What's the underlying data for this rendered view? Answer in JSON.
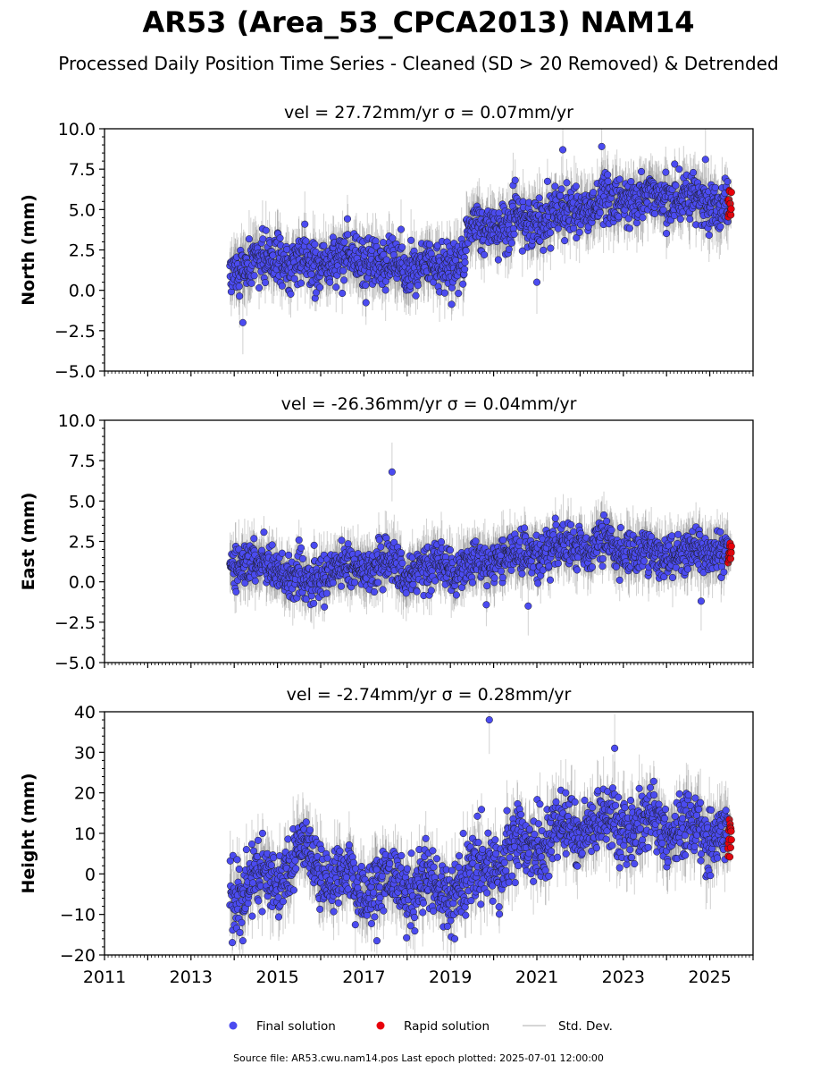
{
  "figure": {
    "title": "AR53 (Area_53_CPCA2013) NAM14",
    "subtitle": "Processed Daily Position Time Series - Cleaned (SD > 20 Removed) & Detrended",
    "footer": "Source file: AR53.cwu.nam14.pos  Last epoch plotted: 2025-07-01 12:00:00",
    "legend": {
      "final": "Final solution",
      "rapid": "Rapid solution",
      "std": "Std. Dev.",
      "position": "bottom-center"
    },
    "colors": {
      "final": "#4b4bf0",
      "rapid": "#e8000b",
      "std": "#b0b0b0",
      "marker_edge": "#1a1a1a"
    }
  },
  "chart_data": [
    {
      "type": "scatter",
      "title": "vel = 27.72mm/yr   σ = 0.07mm/yr",
      "ylabel": "North (mm)",
      "xlim": [
        2011.0,
        2026.0
      ],
      "ylim": [
        -5,
        10
      ],
      "yticks": [
        "−5.0",
        "−2.5",
        "0.0",
        "2.5",
        "5.0",
        "7.5",
        "10.0"
      ],
      "xticks": [
        "2011",
        "2013",
        "2015",
        "2017",
        "2019",
        "2021",
        "2023",
        "2025"
      ],
      "x_start": 2013.9,
      "x_end": 2025.5,
      "rapid_start": 2025.42,
      "segments": [
        {
          "x": 2013.9,
          "y": 1.3
        },
        {
          "x": 2015.0,
          "y": 2.0
        },
        {
          "x": 2016.0,
          "y": 1.8
        },
        {
          "x": 2017.0,
          "y": 1.9
        },
        {
          "x": 2018.0,
          "y": 1.3
        },
        {
          "x": 2019.3,
          "y": 1.8
        },
        {
          "x": 2019.4,
          "y": 3.6
        },
        {
          "x": 2020.5,
          "y": 4.2
        },
        {
          "x": 2021.5,
          "y": 4.6
        },
        {
          "x": 2022.5,
          "y": 5.5
        },
        {
          "x": 2023.5,
          "y": 6.0
        },
        {
          "x": 2024.5,
          "y": 5.8
        },
        {
          "x": 2025.5,
          "y": 5.3
        }
      ],
      "scatter_sd": 0.75,
      "errbar": 1.4,
      "outliers": [
        {
          "x": 2014.2,
          "y": -2.0
        },
        {
          "x": 2021.6,
          "y": 8.7
        },
        {
          "x": 2022.5,
          "y": 8.9
        },
        {
          "x": 2024.9,
          "y": 8.1
        },
        {
          "x": 2021.0,
          "y": 0.5
        }
      ],
      "rapid_range": [
        4.4,
        6.2
      ]
    },
    {
      "type": "scatter",
      "title": "vel = -26.36mm/yr   σ = 0.04mm/yr",
      "ylabel": "East (mm)",
      "xlim": [
        2011.0,
        2026.0
      ],
      "ylim": [
        -5,
        10
      ],
      "yticks": [
        "−5.0",
        "−2.5",
        "0.0",
        "2.5",
        "5.0",
        "7.5",
        "10.0"
      ],
      "xticks": [
        "2011",
        "2013",
        "2015",
        "2017",
        "2019",
        "2021",
        "2023",
        "2025"
      ],
      "x_start": 2013.9,
      "x_end": 2025.5,
      "rapid_start": 2025.42,
      "segments": [
        {
          "x": 2013.9,
          "y": 1.4
        },
        {
          "x": 2015.0,
          "y": 0.8
        },
        {
          "x": 2015.7,
          "y": 0.1
        },
        {
          "x": 2016.5,
          "y": 1.0
        },
        {
          "x": 2018.0,
          "y": 0.9
        },
        {
          "x": 2019.5,
          "y": 1.0
        },
        {
          "x": 2020.5,
          "y": 1.7
        },
        {
          "x": 2021.5,
          "y": 2.1
        },
        {
          "x": 2022.5,
          "y": 2.3
        },
        {
          "x": 2023.5,
          "y": 1.6
        },
        {
          "x": 2024.5,
          "y": 1.9
        },
        {
          "x": 2025.5,
          "y": 2.0
        }
      ],
      "scatter_sd": 0.65,
      "errbar": 1.3,
      "outliers": [
        {
          "x": 2017.65,
          "y": 6.8
        },
        {
          "x": 2020.8,
          "y": -1.5
        },
        {
          "x": 2024.8,
          "y": -1.2
        }
      ],
      "rapid_range": [
        1.1,
        2.4
      ]
    },
    {
      "type": "scatter",
      "title": "vel = -2.74mm/yr   σ = 0.28mm/yr",
      "ylabel": "Height (mm)",
      "xlim": [
        2011.0,
        2026.0
      ],
      "ylim": [
        -20,
        40
      ],
      "yticks": [
        "−20",
        "−10",
        "0",
        "10",
        "20",
        "30",
        "40"
      ],
      "xticks": [
        "2011",
        "2013",
        "2015",
        "2017",
        "2019",
        "2021",
        "2023",
        "2025"
      ],
      "x_start": 2013.9,
      "x_end": 2025.5,
      "rapid_start": 2025.42,
      "segments": [
        {
          "x": 2013.9,
          "y": -4.0
        },
        {
          "x": 2015.0,
          "y": -1.0
        },
        {
          "x": 2015.6,
          "y": 6.0
        },
        {
          "x": 2016.3,
          "y": -2.0
        },
        {
          "x": 2017.5,
          "y": -3.0
        },
        {
          "x": 2018.5,
          "y": -4.0
        },
        {
          "x": 2019.3,
          "y": -3.0
        },
        {
          "x": 2020.0,
          "y": 4.0
        },
        {
          "x": 2021.0,
          "y": 8.0
        },
        {
          "x": 2022.0,
          "y": 12.0
        },
        {
          "x": 2023.0,
          "y": 12.0
        },
        {
          "x": 2024.0,
          "y": 11.0
        },
        {
          "x": 2025.5,
          "y": 10.0
        }
      ],
      "scatter_sd": 4.0,
      "errbar": 6.0,
      "outliers": [
        {
          "x": 2019.9,
          "y": 38.0
        },
        {
          "x": 2022.8,
          "y": 31.0
        },
        {
          "x": 2014.2,
          "y": -16.5
        },
        {
          "x": 2017.3,
          "y": -16.5
        },
        {
          "x": 2019.1,
          "y": -16.0
        }
      ],
      "rapid_range": [
        4.0,
        14.0
      ]
    }
  ]
}
